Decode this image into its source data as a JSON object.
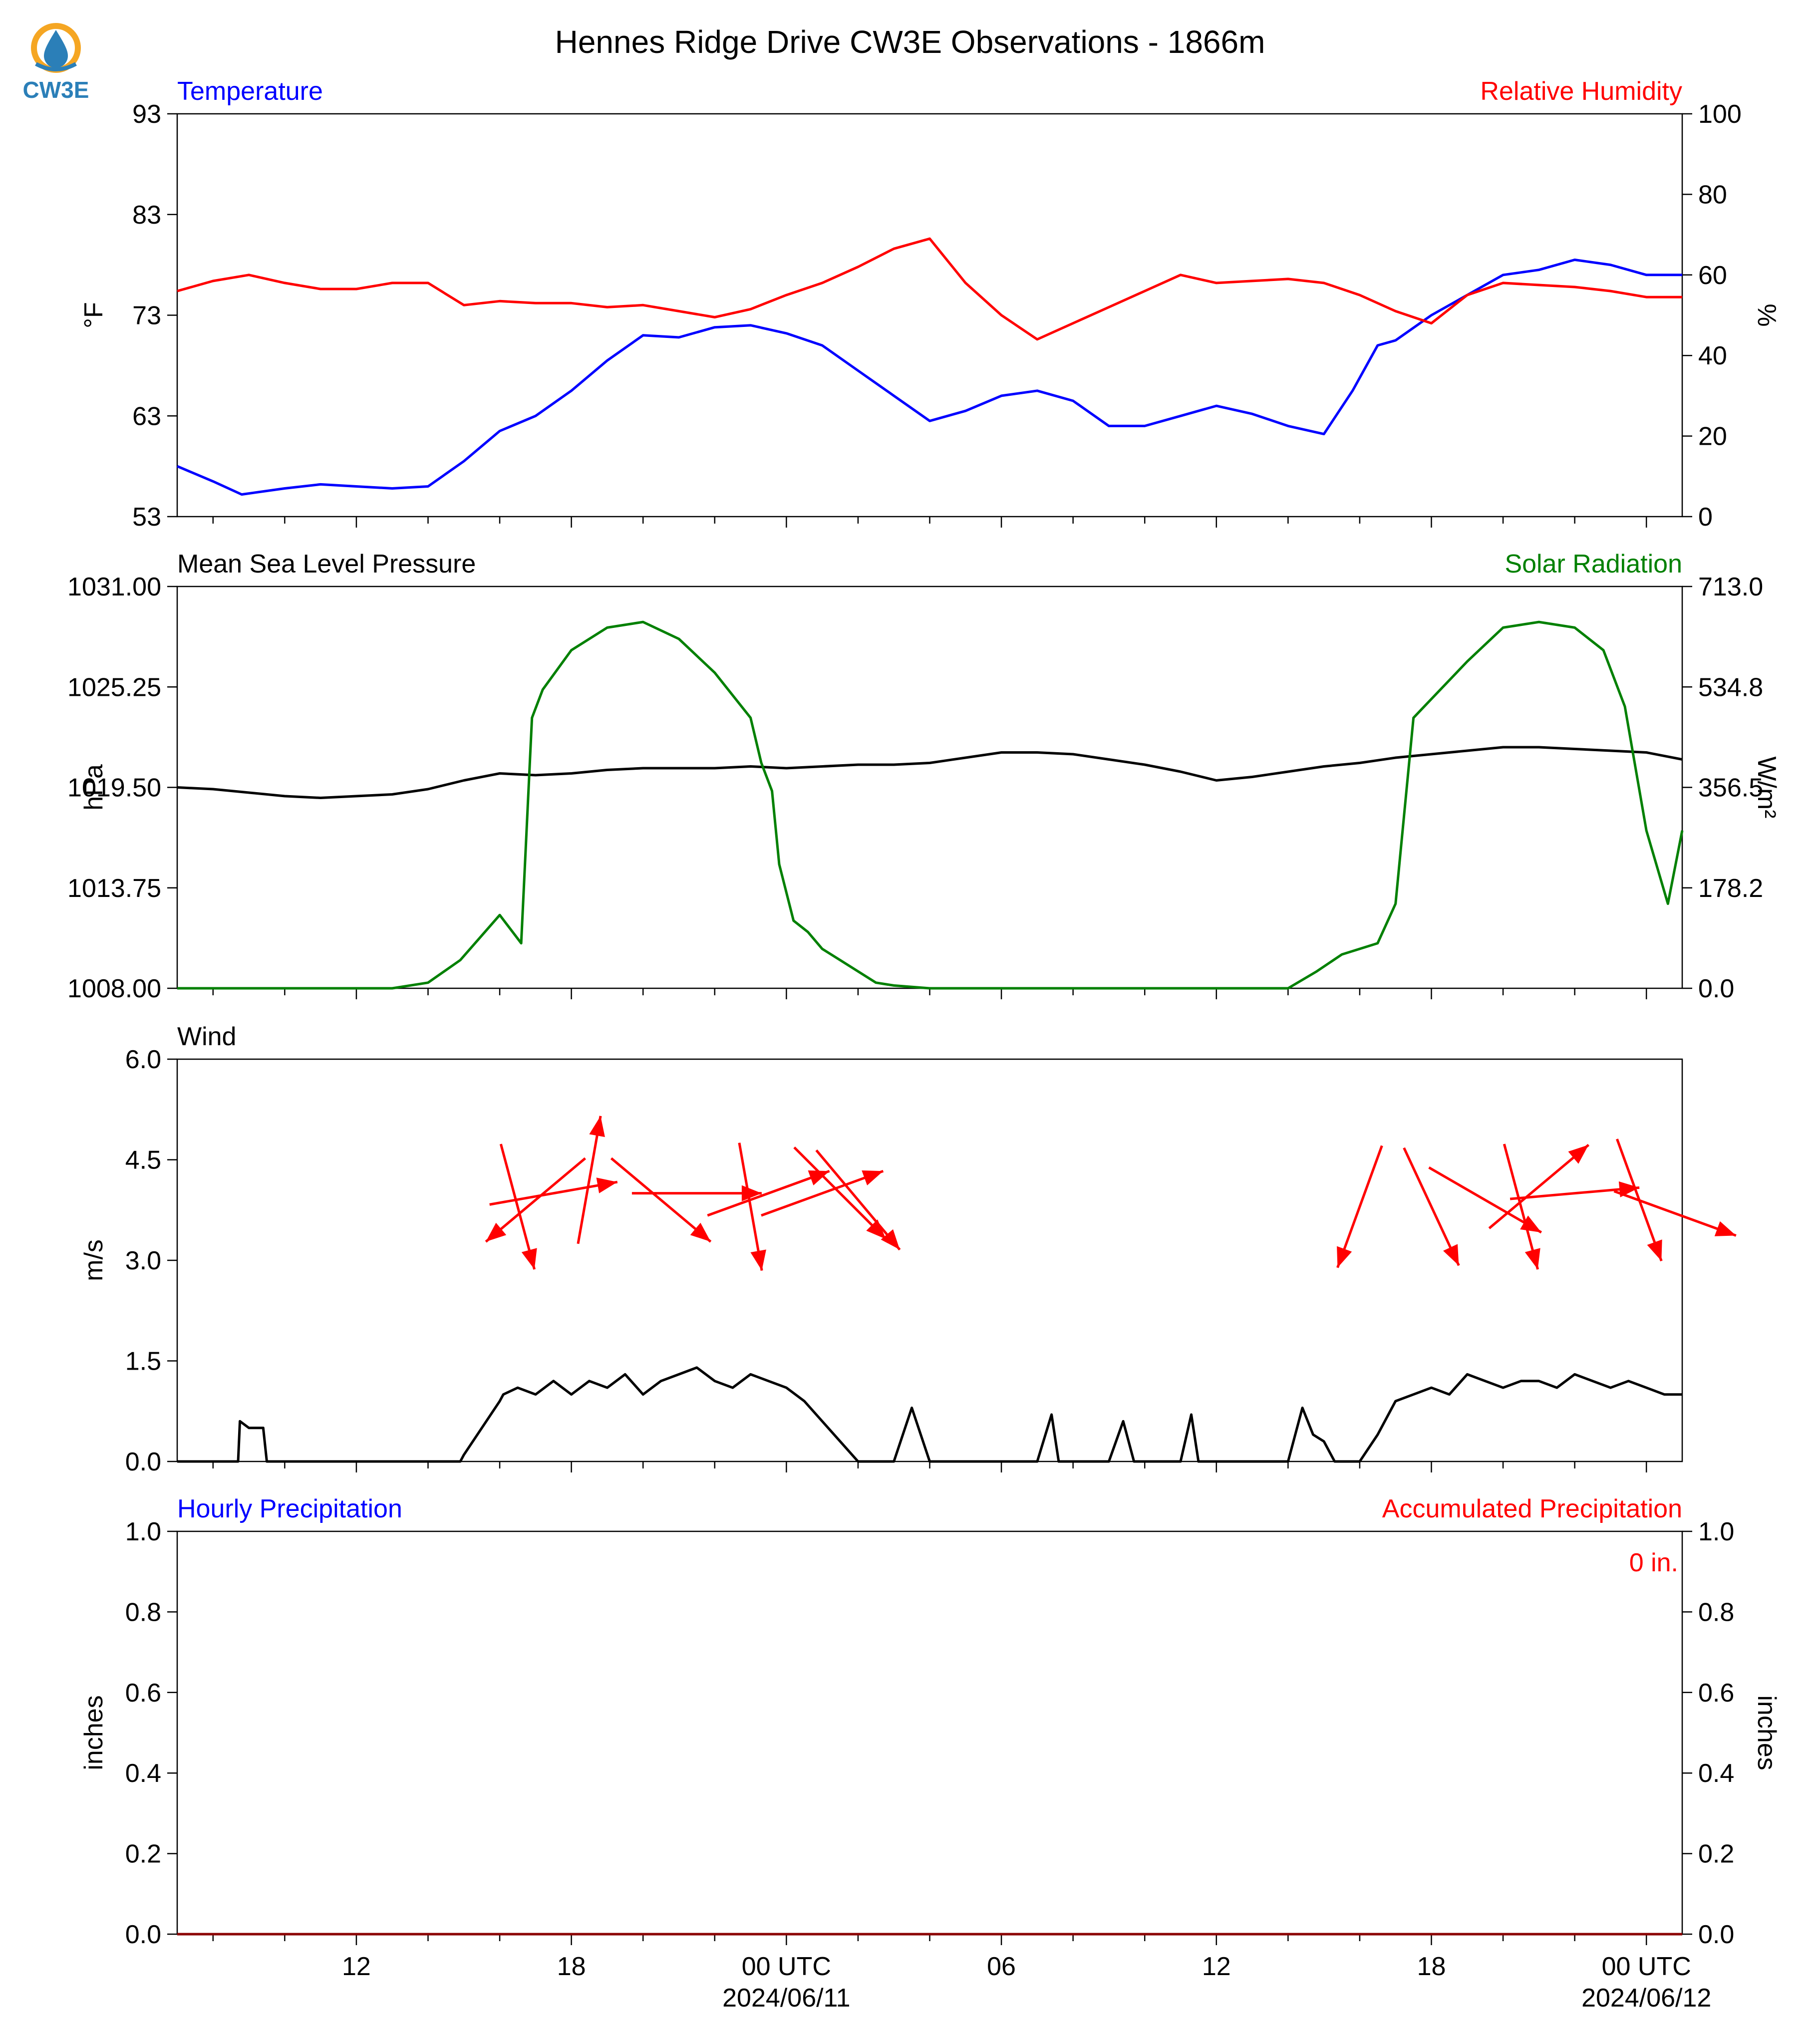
{
  "title": "Hennes Ridge Drive CW3E Observations - 1866m",
  "logo": {
    "text": "CW3E",
    "icon": "cw3e-drop-logo-icon",
    "ring_color": "#f5a623",
    "drop_color": "#2b7fb8"
  },
  "colors": {
    "temperature": "#0000ff",
    "humidity": "#ff0000",
    "pressure": "#000000",
    "solar": "#008000",
    "wind": "#000000",
    "wind_arrow": "#ff0000",
    "hourly_precip": "#0000ff",
    "accum_precip": "#ff0000"
  },
  "x_axis": {
    "start_hour": 7,
    "end_hour": 49,
    "tick_labels": [
      {
        "hour": 12,
        "label": "12"
      },
      {
        "hour": 18,
        "label": "18"
      },
      {
        "hour": 24,
        "label": "00 UTC",
        "sublabel": "2024/06/11"
      },
      {
        "hour": 30,
        "label": "06"
      },
      {
        "hour": 36,
        "label": "12"
      },
      {
        "hour": 42,
        "label": "18"
      },
      {
        "hour": 48,
        "label": "00 UTC",
        "sublabel": "2024/06/12"
      }
    ]
  },
  "chart_data": [
    {
      "type": "line",
      "left_label": "Temperature",
      "right_label": "Relative Humidity",
      "ylabel": "°F",
      "y2label": "%",
      "ylim": [
        53,
        93
      ],
      "y2lim": [
        0,
        100
      ],
      "yticks": [
        "53",
        "63",
        "73",
        "83",
        "93"
      ],
      "y2ticks": [
        "0",
        "20",
        "40",
        "60",
        "80",
        "100"
      ],
      "series": [
        {
          "axis": "left",
          "color": "#0000ff",
          "x": [
            7,
            8,
            8.8,
            10,
            11,
            12,
            13,
            14,
            15,
            16,
            17,
            18,
            19,
            20,
            21,
            22,
            23,
            24,
            25,
            26,
            27,
            28,
            29,
            30,
            31,
            32,
            33,
            34,
            35,
            36,
            37,
            38,
            39,
            39.8,
            40.5,
            41,
            42,
            43,
            44,
            45,
            46,
            47,
            48,
            49
          ],
          "values": [
            58,
            56.5,
            55.2,
            55.8,
            56.2,
            56,
            55.8,
            56,
            58.5,
            61.5,
            63,
            65.5,
            68.5,
            71,
            70.8,
            71.8,
            72,
            71.2,
            70,
            67.5,
            65,
            62.5,
            63.5,
            65,
            65.5,
            64.5,
            62,
            62,
            63,
            64,
            63.2,
            62,
            61.2,
            65.5,
            70,
            70.5,
            73,
            75,
            77,
            77.5,
            78.5,
            78,
            77,
            77
          ]
        },
        {
          "axis": "right",
          "color": "#ff0000",
          "x": [
            7,
            8,
            9,
            10,
            11,
            12,
            13,
            14,
            15,
            16,
            17,
            18,
            19,
            20,
            21,
            22,
            23,
            24,
            25,
            26,
            27,
            28,
            29,
            30,
            31,
            32,
            33,
            34,
            35,
            36,
            37,
            38,
            39,
            40,
            41,
            42,
            43,
            44,
            45,
            46,
            47,
            48,
            49
          ],
          "values": [
            56,
            58.5,
            60,
            58,
            56.5,
            56.5,
            58,
            58,
            52.5,
            53.5,
            53,
            53,
            52,
            52.5,
            51,
            49.5,
            51.5,
            55,
            58,
            62,
            66.5,
            69,
            58,
            50,
            44,
            48,
            52,
            56,
            60,
            58,
            58.5,
            59,
            58,
            55,
            51,
            48,
            55,
            58,
            57.5,
            57,
            56,
            54.5,
            54.5
          ]
        }
      ]
    },
    {
      "type": "line",
      "left_label": "Mean Sea Level Pressure",
      "right_label": "Solar Radiation",
      "ylabel": "hPa",
      "y2label": "W/m²",
      "ylim": [
        1008,
        1031
      ],
      "y2lim": [
        0,
        713
      ],
      "yticks": [
        "1008.00",
        "1013.75",
        "1019.50",
        "1025.25",
        "1031.00"
      ],
      "y2ticks": [
        "0.0",
        "178.2",
        "356.5",
        "534.8",
        "713.0"
      ],
      "series": [
        {
          "axis": "left",
          "color": "#000000",
          "x": [
            7,
            8,
            9,
            10,
            11,
            12,
            13,
            14,
            15,
            16,
            17,
            18,
            19,
            20,
            21,
            22,
            23,
            24,
            25,
            26,
            27,
            28,
            29,
            30,
            31,
            32,
            33,
            34,
            35,
            36,
            37,
            38,
            39,
            40,
            41,
            42,
            43,
            44,
            45,
            46,
            47,
            48,
            49
          ],
          "values": [
            1019.5,
            1019.4,
            1019.2,
            1019.0,
            1018.9,
            1019.0,
            1019.1,
            1019.4,
            1019.9,
            1020.3,
            1020.2,
            1020.3,
            1020.5,
            1020.6,
            1020.6,
            1020.6,
            1020.7,
            1020.6,
            1020.7,
            1020.8,
            1020.8,
            1020.9,
            1021.2,
            1021.5,
            1021.5,
            1021.4,
            1021.1,
            1020.8,
            1020.4,
            1019.9,
            1020.1,
            1020.4,
            1020.7,
            1020.9,
            1021.2,
            1021.4,
            1021.6,
            1021.8,
            1021.8,
            1021.7,
            1021.6,
            1021.5,
            1021.1
          ]
        },
        {
          "axis": "right",
          "color": "#008000",
          "x": [
            7,
            13,
            14,
            14.9,
            16,
            16.6,
            16.9,
            17.2,
            18,
            19,
            20,
            21,
            22,
            23,
            23.3,
            23.6,
            23.8,
            24.2,
            24.6,
            25,
            25.5,
            26,
            26.5,
            27,
            28,
            32,
            38,
            38.8,
            39.5,
            40.5,
            41,
            41.5,
            41.8,
            43,
            44,
            45,
            46,
            46.8,
            47.4,
            48,
            48.6,
            49
          ],
          "values": [
            0,
            0,
            10,
            50,
            130,
            80,
            480,
            530,
            600,
            640,
            650,
            620,
            560,
            480,
            400,
            350,
            220,
            120,
            100,
            70,
            50,
            30,
            10,
            5,
            0,
            0,
            0,
            30,
            60,
            80,
            150,
            480,
            500,
            580,
            640,
            650,
            640,
            600,
            500,
            280,
            150,
            280
          ]
        }
      ]
    },
    {
      "type": "line",
      "left_label": "Wind",
      "ylabel": "m/s",
      "ylim": [
        0,
        6
      ],
      "yticks": [
        "0.0",
        "1.5",
        "3.0",
        "4.5",
        "6.0"
      ],
      "series": [
        {
          "color": "#000000",
          "x": [
            7,
            8.7,
            8.75,
            9,
            9.4,
            9.5,
            10,
            11,
            12,
            13,
            14,
            14.9,
            15,
            16,
            16.1,
            16.5,
            17,
            17.5,
            18,
            18.5,
            19,
            19.5,
            20,
            20.5,
            21,
            21.5,
            22,
            22.5,
            23,
            23.5,
            24,
            24.5,
            25,
            25.5,
            26,
            26.5,
            27,
            27.5,
            28,
            28.5,
            29,
            31,
            31.4,
            31.6,
            32,
            33,
            33.4,
            33.7,
            34,
            35,
            35.3,
            35.5,
            36,
            37,
            38,
            38.4,
            38.7,
            39,
            39.3,
            40,
            40.5,
            41,
            41.5,
            42,
            42.5,
            43,
            43.5,
            44,
            44.5,
            45,
            45.5,
            46,
            46.5,
            47,
            47.5,
            48,
            48.5,
            49
          ],
          "values": [
            0,
            0,
            0.6,
            0.5,
            0.5,
            0,
            0,
            0,
            0,
            0,
            0,
            0,
            0.1,
            0.9,
            1.0,
            1.1,
            1.0,
            1.2,
            1.0,
            1.2,
            1.1,
            1.3,
            1.0,
            1.2,
            1.3,
            1.4,
            1.2,
            1.1,
            1.3,
            1.2,
            1.1,
            0.9,
            0.6,
            0.3,
            0,
            0,
            0,
            0.8,
            0,
            0,
            0,
            0,
            0.7,
            0,
            0,
            0,
            0.6,
            0,
            0,
            0,
            0.7,
            0,
            0,
            0,
            0,
            0.8,
            0.4,
            0.3,
            0,
            0,
            0.4,
            0.9,
            1.0,
            1.1,
            1.0,
            1.3,
            1.2,
            1.1,
            1.2,
            1.2,
            1.1,
            1.3,
            1.2,
            1.1,
            1.2,
            1.1,
            1.0,
            1.0
          ]
        }
      ],
      "wind_arrows": [
        {
          "x": 18.5,
          "speed": 4.2,
          "direction_deg": 190
        },
        {
          "x": 16.5,
          "speed": 3.8,
          "direction_deg": 345
        },
        {
          "x": 17.0,
          "speed": 3.9,
          "direction_deg": 50
        },
        {
          "x": 17.5,
          "speed": 4.0,
          "direction_deg": 260
        },
        {
          "x": 20.5,
          "speed": 3.9,
          "direction_deg": 310
        },
        {
          "x": 21.5,
          "speed": 4.0,
          "direction_deg": 270
        },
        {
          "x": 23.0,
          "speed": 3.8,
          "direction_deg": 350
        },
        {
          "x": 23.5,
          "speed": 4.0,
          "direction_deg": 250
        },
        {
          "x": 25.0,
          "speed": 4.0,
          "direction_deg": 250
        },
        {
          "x": 26.0,
          "speed": 3.9,
          "direction_deg": 320
        },
        {
          "x": 25.5,
          "speed": 4.0,
          "direction_deg": 315
        },
        {
          "x": 40.0,
          "speed": 3.8,
          "direction_deg": 20
        },
        {
          "x": 42.0,
          "speed": 3.8,
          "direction_deg": 335
        },
        {
          "x": 43.5,
          "speed": 3.9,
          "direction_deg": 300
        },
        {
          "x": 44.5,
          "speed": 3.8,
          "direction_deg": 345
        },
        {
          "x": 45.0,
          "speed": 4.1,
          "direction_deg": 230
        },
        {
          "x": 46.0,
          "speed": 4.0,
          "direction_deg": 265
        },
        {
          "x": 47.8,
          "speed": 3.9,
          "direction_deg": 340
        },
        {
          "x": 48.8,
          "speed": 3.7,
          "direction_deg": 290
        }
      ]
    },
    {
      "type": "line",
      "left_label": "Hourly Precipitation",
      "right_label": "Accumulated Precipitation",
      "ylabel": "inches",
      "y2label": "inches",
      "ylim": [
        0,
        1
      ],
      "y2lim": [
        0,
        1
      ],
      "yticks": [
        "0.0",
        "0.2",
        "0.4",
        "0.6",
        "0.8",
        "1.0"
      ],
      "y2ticks": [
        "0.0",
        "0.2",
        "0.4",
        "0.6",
        "0.8",
        "1.0"
      ],
      "annotation": "0 in.",
      "series": [
        {
          "axis": "left",
          "color": "#0000ff",
          "x": [
            7,
            49
          ],
          "values": [
            0,
            0
          ]
        },
        {
          "axis": "right",
          "color": "#8b0000",
          "x": [
            7,
            49
          ],
          "values": [
            0,
            0
          ]
        }
      ]
    }
  ]
}
